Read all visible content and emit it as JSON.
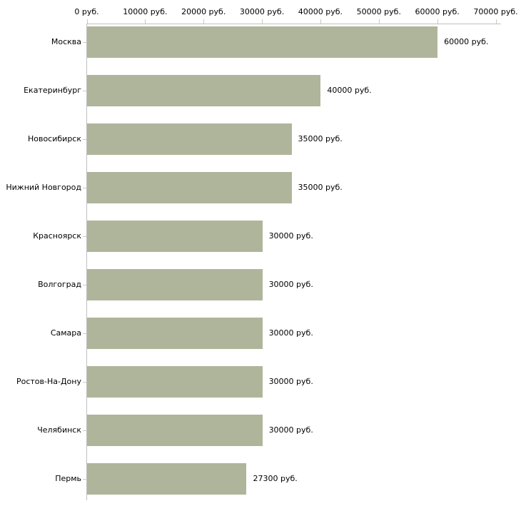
{
  "chart_data": {
    "type": "bar",
    "orientation": "horizontal",
    "title": "",
    "xlabel": "",
    "ylabel": "",
    "unit": "руб.",
    "categories": [
      "Москва",
      "Екатеринбург",
      "Новосибирск",
      "Нижний Новгород",
      "Красноярск",
      "Волгоград",
      "Самара",
      "Ростов-На-Дону",
      "Челябинск",
      "Пермь"
    ],
    "values": [
      60000,
      40000,
      35000,
      35000,
      30000,
      30000,
      30000,
      30000,
      30000,
      27300
    ],
    "value_labels": [
      "60000 руб.",
      "40000 руб.",
      "35000 руб.",
      "35000 руб.",
      "30000 руб.",
      "30000 руб.",
      "30000 руб.",
      "30000 руб.",
      "30000 руб.",
      "27300 руб."
    ],
    "x_axis": {
      "position": "top",
      "min": 0,
      "max": 70000,
      "ticks": [
        0,
        10000,
        20000,
        30000,
        40000,
        50000,
        60000,
        70000
      ],
      "tick_labels": [
        "0 руб.",
        "10000 руб.",
        "20000 руб.",
        "30000 руб.",
        "40000 руб.",
        "50000 руб.",
        "60000 руб.",
        "70000 руб."
      ]
    },
    "grid": false,
    "legend": false,
    "colors": {
      "bar": "#afb59a",
      "axis_line": "#c0c0c0",
      "tick": "#cbcbb6",
      "text": "#000000",
      "background": "#ffffff"
    }
  }
}
